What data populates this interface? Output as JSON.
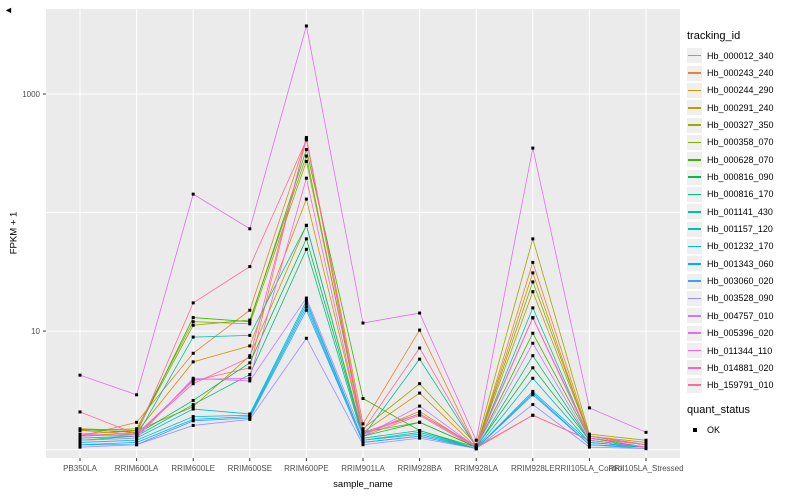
{
  "figure": {
    "background": "#FFFFFF",
    "panel_bg": "#EBEBEB",
    "grid_major": "#FFFFFF",
    "axis_text_color": "#4D4D4D",
    "tick_color": "#333333",
    "artifact_arrow": "◄"
  },
  "axes": {
    "x_title": "sample_name",
    "y_title": "FPKM + 1"
  },
  "legend": {
    "tracking_title": "tracking_id",
    "quant_title": "quant_status",
    "quant_items": [
      {
        "label": "OK",
        "marker": "black-square"
      }
    ]
  },
  "chart_data": {
    "type": "line",
    "title": "",
    "xlabel": "sample_name",
    "ylabel": "FPKM + 1",
    "y_scale": "log10",
    "ylim": [
      0.85,
      5215
    ],
    "y_major_breaks": [
      1,
      10,
      100,
      1000
    ],
    "y_labeled_breaks": [
      {
        "value": 10,
        "label": "10"
      },
      {
        "value": 1000,
        "label": "1000"
      }
    ],
    "grid": true,
    "legend_position": "right",
    "marker": {
      "shape": "square",
      "color": "#000000",
      "size": 3
    },
    "categories": [
      "PB350LA",
      "RRIM600LA",
      "RRIM600LE",
      "RRIM600SE",
      "RRIM600PE",
      "RRIM901LA",
      "RRIM928BA",
      "RRIM928LA",
      "RRIM928LE",
      "RRII105LA_Control",
      "RRII105LA_Stressed"
    ],
    "series": [
      {
        "name": "Hb_000012_340",
        "color": "#F8766D",
        "values": [
          1.45,
          1.35,
          3.8,
          4.9,
          430,
          1.3,
          1.95,
          1.03,
          1.95,
          1.2,
          1.05
        ]
      },
      {
        "name": "Hb_000243_240",
        "color": "#EA8331",
        "values": [
          1.3,
          1.7,
          6.5,
          15,
          420,
          1.65,
          10.2,
          1.05,
          38,
          1.3,
          1.1
        ]
      },
      {
        "name": "Hb_000244_290",
        "color": "#D89000",
        "values": [
          1.3,
          1.4,
          5.5,
          7.5,
          130,
          1.4,
          3.0,
          1.05,
          31,
          1.25,
          1.1
        ]
      },
      {
        "name": "Hb_000291_240",
        "color": "#C09B00",
        "values": [
          1.35,
          1.45,
          2.3,
          6.2,
          78,
          1.35,
          2.1,
          1.05,
          21.5,
          1.3,
          1.15
        ]
      },
      {
        "name": "Hb_000327_350",
        "color": "#A3A500",
        "values": [
          1.45,
          1.5,
          12,
          11.5,
          270,
          1.5,
          3.6,
          1.1,
          60,
          1.35,
          1.2
        ]
      },
      {
        "name": "Hb_000358_070",
        "color": "#7CAE00",
        "values": [
          1.5,
          1.45,
          11.2,
          12.4,
          300,
          1.4,
          1.7,
          1.05,
          26,
          1.3,
          1.1
        ]
      },
      {
        "name": "Hb_000628_070",
        "color": "#39B600",
        "values": [
          1.48,
          1.4,
          13,
          12,
          340,
          2.7,
          1.45,
          1.05,
          9.6,
          1.25,
          1.05
        ]
      },
      {
        "name": "Hb_000816_090",
        "color": "#00BB4E",
        "values": [
          1.3,
          1.35,
          2.6,
          5.4,
          60,
          1.3,
          1.7,
          1.05,
          4.9,
          1.2,
          1.05
        ]
      },
      {
        "name": "Hb_000816_170",
        "color": "#00BF7D",
        "values": [
          1.25,
          1.3,
          2.4,
          4.3,
          49,
          1.25,
          1.45,
          1.02,
          6.2,
          1.2,
          1.05
        ]
      },
      {
        "name": "Hb_001141_430",
        "color": "#00C1A3",
        "values": [
          1.2,
          1.3,
          8.9,
          9.2,
          78,
          1.3,
          5.8,
          1.05,
          15.7,
          1.25,
          1.1
        ]
      },
      {
        "name": "Hb_001157_120",
        "color": "#00BFC4",
        "values": [
          1.2,
          1.25,
          2.2,
          2.0,
          18,
          1.2,
          1.4,
          1.02,
          4.0,
          1.15,
          1.05
        ]
      },
      {
        "name": "Hb_001232_170",
        "color": "#00BAE0",
        "values": [
          1.15,
          1.2,
          1.9,
          1.95,
          17,
          1.2,
          1.35,
          1.02,
          3.1,
          1.15,
          1.05
        ]
      },
      {
        "name": "Hb_001343_060",
        "color": "#00B0F6",
        "values": [
          1.1,
          1.15,
          1.8,
          1.9,
          16,
          1.15,
          1.3,
          1.02,
          3.0,
          1.1,
          1.05
        ]
      },
      {
        "name": "Hb_003060_020",
        "color": "#35A2FF",
        "values": [
          1.1,
          1.1,
          1.75,
          1.85,
          15,
          1.15,
          1.3,
          1.02,
          2.9,
          1.1,
          1.02
        ]
      },
      {
        "name": "Hb_003528_090",
        "color": "#9590FF",
        "values": [
          1.05,
          1.1,
          1.6,
          1.8,
          8.7,
          1.1,
          1.25,
          1.02,
          2.4,
          1.05,
          1.02
        ]
      },
      {
        "name": "Hb_004757_010",
        "color": "#C77CFF",
        "values": [
          1.2,
          1.25,
          4.0,
          3.8,
          19,
          1.3,
          2.33,
          1.05,
          7.9,
          1.2,
          1.05
        ]
      },
      {
        "name": "Hb_005396_020",
        "color": "#E76BF3",
        "values": [
          4.25,
          2.9,
          143,
          73,
          3750,
          11.7,
          14.2,
          1.2,
          350,
          2.25,
          1.4
        ]
      },
      {
        "name": "Hb_011344_110",
        "color": "#FA62DB",
        "values": [
          1.35,
          1.3,
          3.9,
          4.0,
          195,
          1.35,
          2.0,
          1.05,
          12.9,
          1.25,
          1.1
        ]
      },
      {
        "name": "Hb_014881_020",
        "color": "#FF62BC",
        "values": [
          1.3,
          1.35,
          3.6,
          6.0,
          415,
          1.4,
          2.0,
          1.08,
          13,
          1.3,
          1.1
        ]
      },
      {
        "name": "Hb_159791_010",
        "color": "#FF6A98",
        "values": [
          2.08,
          1.35,
          17.3,
          35,
          410,
          1.45,
          7.2,
          1.05,
          1.95,
          1.2,
          1.05
        ]
      }
    ]
  }
}
